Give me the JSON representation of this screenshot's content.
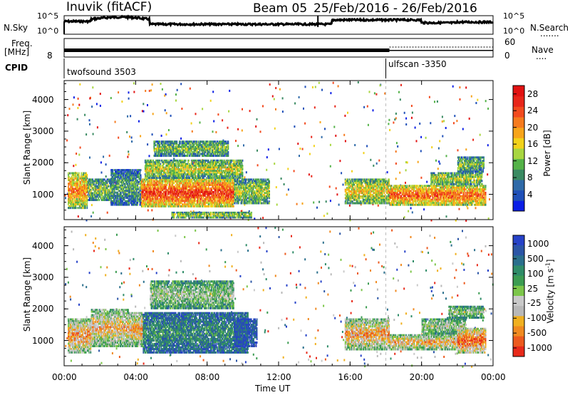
{
  "header": {
    "station": "Inuvik (fitACF)",
    "beam": "Beam 05",
    "date_range": "25/Feb/2016 - 26/Feb/2016"
  },
  "strips": {
    "nsky_label": "N.Sky",
    "nsearch_label": "N.Search",
    "nsearch_dots": ".......",
    "left_top_tick": "10^5",
    "left_bottom_tick": "10^0",
    "right_top_tick": "10^5",
    "right_bottom_tick": "10^0",
    "freq_label": "Freq.",
    "freq_unit": "[MHz]",
    "freq_tick_left": "8",
    "nave_label": "Nave",
    "nave_dots": "....",
    "nave_tick_top": "60",
    "nave_tick_bottom": "0",
    "cpid_label": "CPID",
    "cpid_1": "twofsound 3503",
    "cpid_2": "ulfscan -3350",
    "cpid_change_hour": 18.0
  },
  "colors": {
    "power": [
      "#0a1ee6",
      "#1f4fb8",
      "#2f6aa8",
      "#3a8a62",
      "#54b248",
      "#a8d640",
      "#f2d21a",
      "#f7a41a",
      "#f57a1e",
      "#f24a1e",
      "#e8261a",
      "#e21212"
    ],
    "velocity": [
      "#2642c8",
      "#2b55a6",
      "#2a6f8c",
      "#2f8c68",
      "#3c9c52",
      "#7cc64a",
      "#c9c9c9",
      "#b8b8b8",
      "#f0b020",
      "#f08a20",
      "#ec5a1e",
      "#e82a1a"
    ]
  },
  "chart_data": [
    {
      "type": "heatmap",
      "name": "power",
      "ylabel": "Slant Range [km]",
      "xlim_hours": [
        0,
        24
      ],
      "ylim": [
        200,
        4600
      ],
      "yticks": [
        1000,
        2000,
        3000,
        4000
      ],
      "xticks": [
        "00:00",
        "04:00",
        "08:00",
        "12:00",
        "16:00",
        "20:00",
        "00:00"
      ],
      "colorbar": {
        "label": "Power [dB]",
        "ticks": [
          "4",
          "8",
          "12",
          "16",
          "20",
          "24",
          "28"
        ],
        "range": [
          0,
          30
        ]
      },
      "regions": [
        {
          "t": [
            0.2,
            1.3
          ],
          "r": [
            550,
            1700
          ],
          "level": 0.72
        },
        {
          "t": [
            1.3,
            2.6
          ],
          "r": [
            800,
            1500
          ],
          "level": 0.45
        },
        {
          "t": [
            2.6,
            4.3
          ],
          "r": [
            650,
            1800
          ],
          "level": 0.35
        },
        {
          "t": [
            4.3,
            9.5
          ],
          "r": [
            600,
            1500
          ],
          "level": 0.9
        },
        {
          "t": [
            4.5,
            10.0
          ],
          "r": [
            1500,
            2100
          ],
          "level": 0.55
        },
        {
          "t": [
            5.0,
            9.2
          ],
          "r": [
            2200,
            2700
          ],
          "level": 0.45
        },
        {
          "t": [
            9.5,
            11.5
          ],
          "r": [
            700,
            1500
          ],
          "level": 0.5
        },
        {
          "t": [
            6.0,
            10.5
          ],
          "r": [
            250,
            450
          ],
          "level": 0.55
        },
        {
          "t": [
            15.7,
            18.2
          ],
          "r": [
            700,
            1500
          ],
          "level": 0.6
        },
        {
          "t": [
            18.2,
            23.6
          ],
          "r": [
            650,
            1300
          ],
          "level": 0.82
        },
        {
          "t": [
            20.5,
            23.4
          ],
          "r": [
            1300,
            1700
          ],
          "level": 0.55
        },
        {
          "t": [
            22.0,
            23.5
          ],
          "r": [
            1700,
            2200
          ],
          "level": 0.45
        }
      ]
    },
    {
      "type": "heatmap",
      "name": "velocity",
      "ylabel": "Slant Range [km]",
      "xlabel": "Time UT",
      "xlim_hours": [
        0,
        24
      ],
      "ylim": [
        200,
        4600
      ],
      "yticks": [
        1000,
        2000,
        3000,
        4000
      ],
      "xticks": [
        "00:00",
        "04:00",
        "08:00",
        "12:00",
        "16:00",
        "20:00",
        "00:00"
      ],
      "colorbar": {
        "label": "Velocity [m s^-1]",
        "ticks": [
          "1000",
          "500",
          "100",
          "25",
          "-25",
          "-100",
          "-500",
          "-1000"
        ]
      },
      "regions": [
        {
          "t": [
            0.2,
            1.5
          ],
          "r": [
            600,
            1700
          ],
          "level": 0.82
        },
        {
          "t": [
            1.5,
            3.6
          ],
          "r": [
            800,
            2000
          ],
          "level": 0.74
        },
        {
          "t": [
            3.6,
            4.4
          ],
          "r": [
            800,
            1900
          ],
          "level": 0.78
        },
        {
          "t": [
            4.4,
            10.3
          ],
          "r": [
            600,
            1900
          ],
          "level": 0.3
        },
        {
          "t": [
            4.8,
            9.5
          ],
          "r": [
            2000,
            2900
          ],
          "level": 0.55
        },
        {
          "t": [
            9.5,
            10.8
          ],
          "r": [
            800,
            1700
          ],
          "level": 0.15
        },
        {
          "t": [
            15.7,
            18.2
          ],
          "r": [
            700,
            1700
          ],
          "level": 0.8
        },
        {
          "t": [
            18.2,
            22.0
          ],
          "r": [
            700,
            1200
          ],
          "level": 0.78
        },
        {
          "t": [
            20.0,
            22.5
          ],
          "r": [
            1200,
            1700
          ],
          "level": 0.58
        },
        {
          "t": [
            22.0,
            23.6
          ],
          "r": [
            600,
            1400
          ],
          "level": 0.95
        },
        {
          "t": [
            21.5,
            23.5
          ],
          "r": [
            1700,
            2100
          ],
          "level": 0.55
        }
      ]
    }
  ]
}
